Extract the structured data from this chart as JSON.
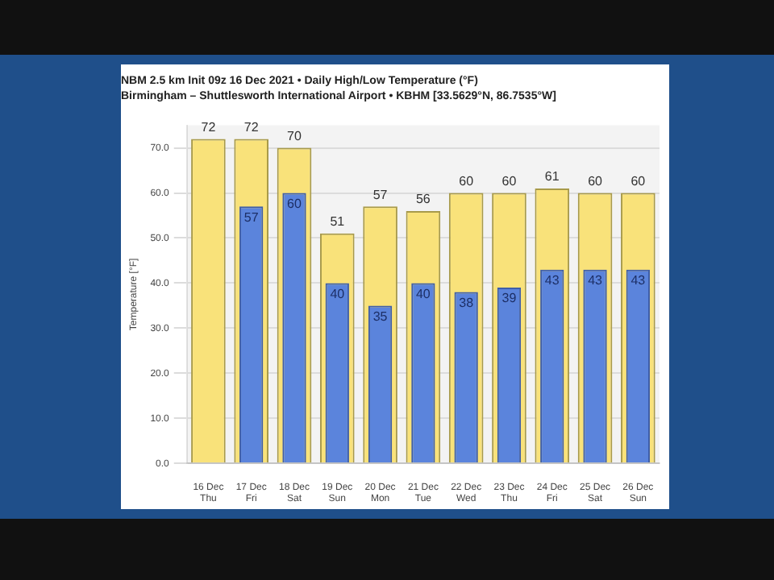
{
  "chart_data": {
    "type": "bar",
    "title": "NBM 2.5 km Init 09z 16 Dec 2021 • Daily High/Low Temperature (°F)",
    "subtitle": "Birmingham – Shuttlesworth International Airport • KBHM [33.5629°N, 86.7535°W]",
    "ylabel": "Temperature [°F]",
    "categories": [
      "16 Dec Thu",
      "17 Dec Fri",
      "18 Dec Sat",
      "19 Dec Sun",
      "20 Dec Mon",
      "21 Dec Tue",
      "22 Dec Wed",
      "23 Dec Thu",
      "24 Dec Fri",
      "25 Dec Sat",
      "26 Dec Sun"
    ],
    "series": [
      {
        "color": "#f9e27a",
        "values": [
          72,
          72,
          70,
          51,
          57,
          56,
          60,
          60,
          61,
          60,
          60
        ]
      },
      {
        "color": "#5b84dc",
        "values": [
          null,
          57,
          60,
          40,
          35,
          40,
          38,
          39,
          43,
          43,
          43
        ]
      }
    ],
    "ylim": [
      0,
      75
    ],
    "yticks": [
      {
        "value": 0,
        "label": "0.0"
      },
      {
        "value": 10,
        "label": "10.0"
      },
      {
        "value": 20,
        "label": "20.0"
      },
      {
        "value": 30,
        "label": "30.0"
      },
      {
        "value": 40,
        "label": "40.0"
      },
      {
        "value": 50,
        "label": "50.0"
      },
      {
        "value": 60,
        "label": "60.0"
      },
      {
        "value": 70,
        "label": "70.0"
      }
    ],
    "grid": "y",
    "data_labels": true
  }
}
